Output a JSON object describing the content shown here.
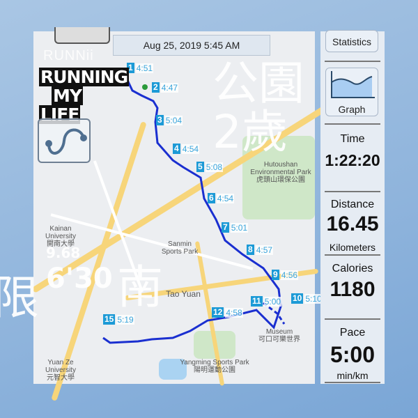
{
  "header": {
    "datetime": "Aug 25, 2019 5:45 AM"
  },
  "branding": {
    "watermark": "RUNNii",
    "logo_line1": "RUNNING",
    "logo_line2a": "MY",
    "logo_line2b": "LIFE"
  },
  "map": {
    "labels": {
      "hutoushan": "Hutoushan Environmental Park",
      "hutoushan_zh": "虎頭山環保公園",
      "sanmin": "Sanmin Sports Park",
      "kainan": "Kainan University",
      "kainan_zh": "開南大學",
      "taoyuan": "Tao Yuan",
      "museum": "Museum",
      "museum_zh": "可口可樂世界",
      "yangming": "Yangming Sports Park",
      "yangming_zh": "陽明運動公園",
      "yuanze": "Yuan Ze University",
      "yuanze_zh": "元智大學"
    },
    "splits": [
      {
        "km": "1",
        "pace": "4:51"
      },
      {
        "km": "2",
        "pace": "4:47"
      },
      {
        "km": "3",
        "pace": "5:04"
      },
      {
        "km": "4",
        "pace": "4:54"
      },
      {
        "km": "5",
        "pace": "5:08"
      },
      {
        "km": "6",
        "pace": "4:54"
      },
      {
        "km": "7",
        "pace": "5:01"
      },
      {
        "km": "8",
        "pace": "4:57"
      },
      {
        "km": "9",
        "pace": "4:56"
      },
      {
        "km": "10",
        "pace": "5:10"
      },
      {
        "km": "11",
        "pace": "5:00"
      },
      {
        "km": "12",
        "pace": "4:58"
      },
      {
        "km": "15",
        "pace": "5:19"
      }
    ],
    "route_color": "#1a2fd0"
  },
  "sidebar": {
    "statistics_label": "Statistics",
    "graph_label": "Graph",
    "time_label": "Time",
    "time_value": "1:22:20",
    "distance_label": "Distance",
    "distance_value": "16.45",
    "distance_unit": "Kilometers",
    "calories_label": "Calories",
    "calories_value": "1180",
    "pace_label": "Pace",
    "pace_value": "5:00",
    "pace_unit": "min/km"
  },
  "overlay": {
    "left_char": "限",
    "mid_text": "南",
    "right_text": "公園2歲",
    "stat1": "9.68",
    "stat2": "6'30"
  }
}
